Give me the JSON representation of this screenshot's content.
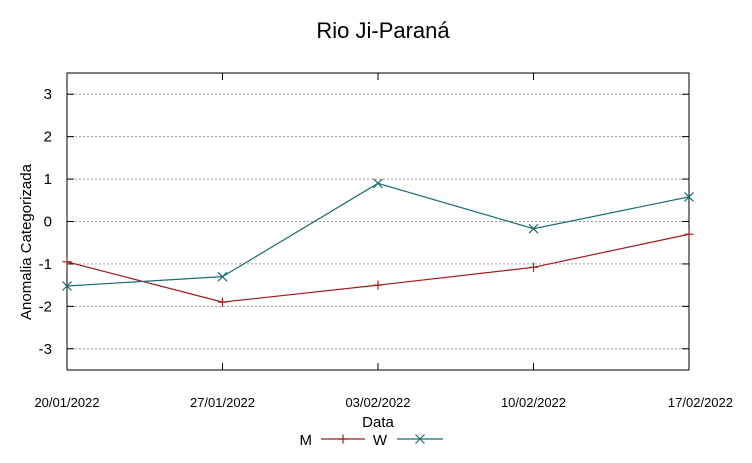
{
  "chart_data": {
    "type": "line",
    "title": "Rio Ji-Paraná",
    "xlabel": "Data",
    "ylabel": "Anomalia Categorizada",
    "categories": [
      "20/01/2022",
      "27/01/2022",
      "03/02/2022",
      "10/02/2022",
      "17/02/2022"
    ],
    "yticks": [
      3,
      2,
      1,
      0,
      -1,
      -2,
      -3
    ],
    "ylim": [
      -3.5,
      3.5
    ],
    "grid": true,
    "legend_position": "bottom",
    "series": [
      {
        "name": "M",
        "values": [
          -0.95,
          -1.9,
          -1.5,
          -1.08,
          -0.3
        ],
        "color": "#a31a1a",
        "marker": "plus"
      },
      {
        "name": "W",
        "values": [
          -1.52,
          -1.3,
          0.9,
          -0.17,
          0.58
        ],
        "color": "#1a6e72",
        "marker": "x"
      }
    ]
  }
}
